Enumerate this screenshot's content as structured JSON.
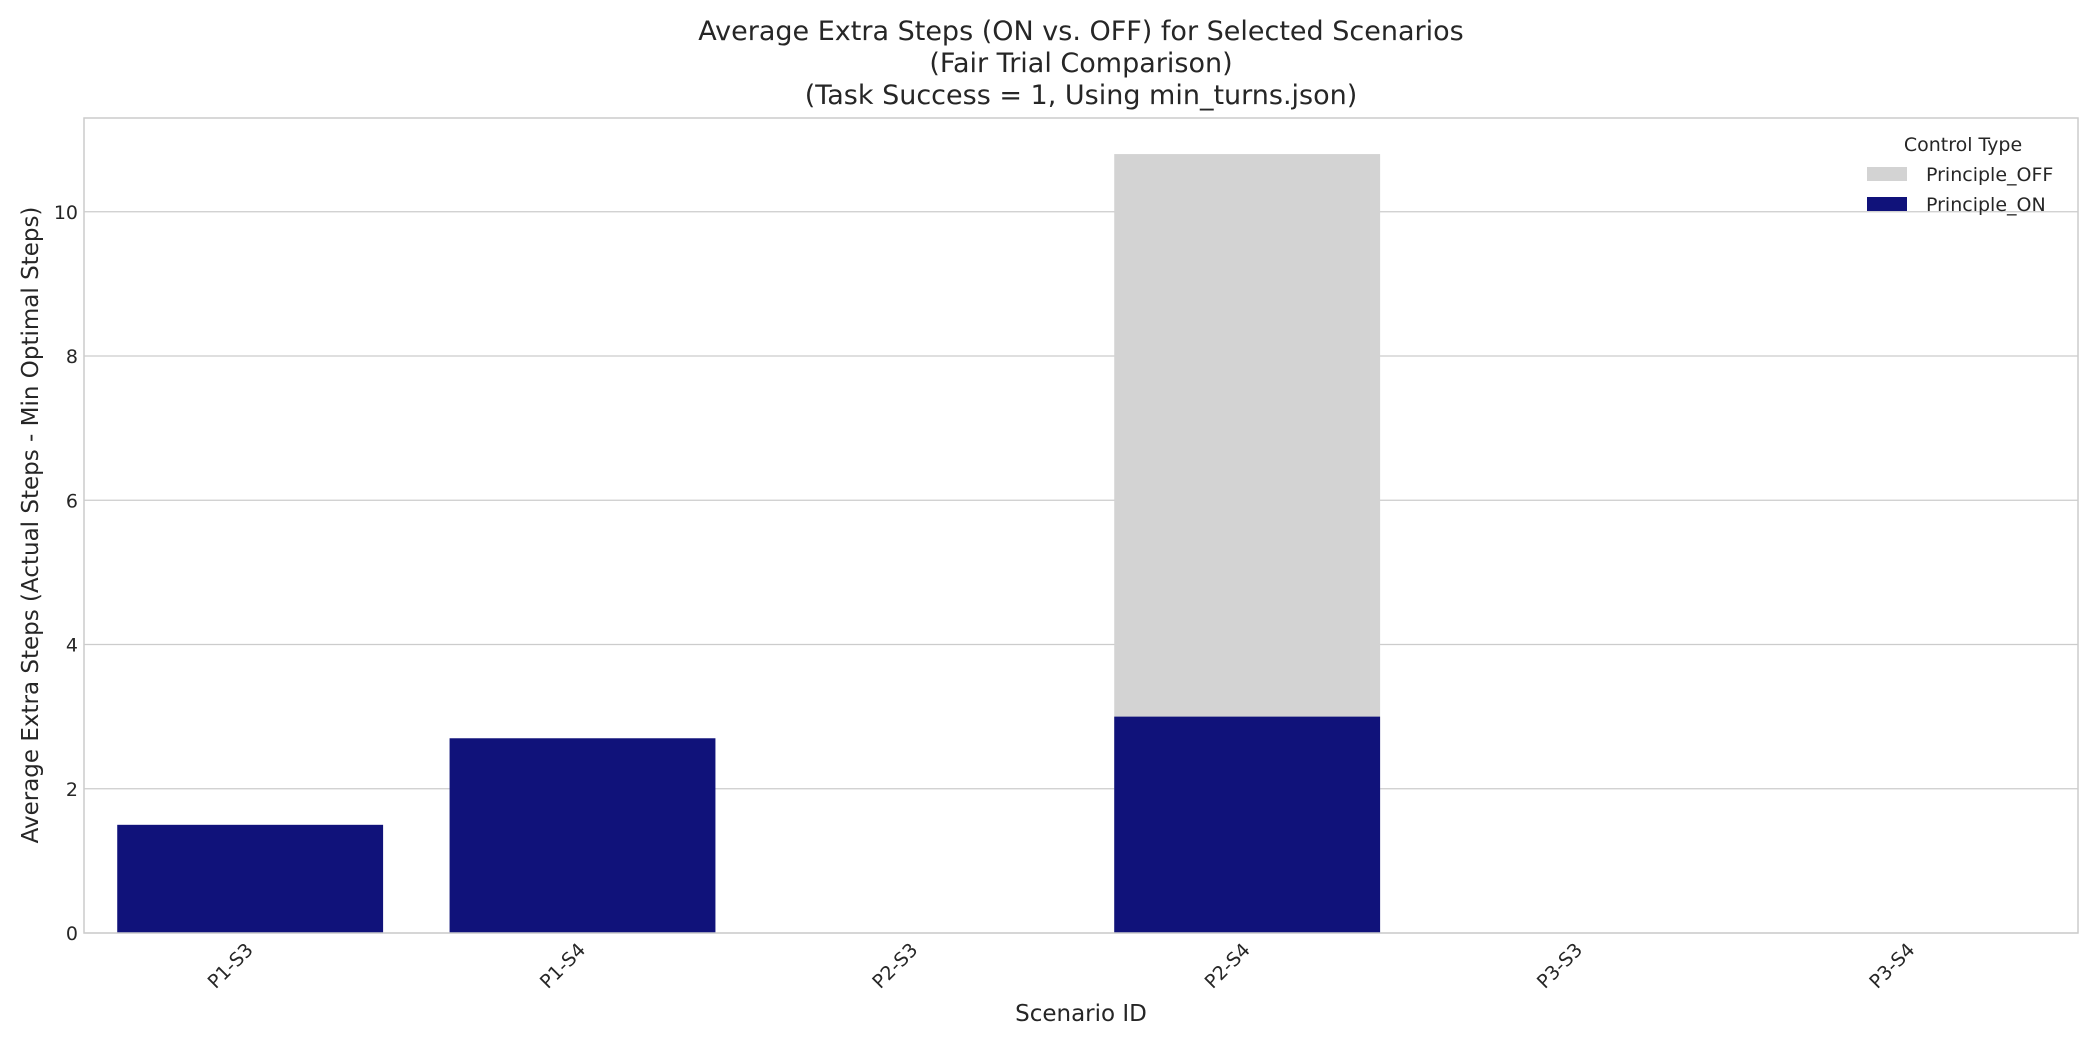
{
  "chart_data": {
    "type": "bar",
    "title_lines": [
      "Average Extra Steps (ON vs. OFF) for Selected Scenarios",
      "(Fair Trial Comparison)",
      "(Task Success = 1, Using min_turns.json)"
    ],
    "xlabel": "Scenario ID",
    "ylabel": "Average Extra Steps (Actual Steps - Min Optimal Steps)",
    "categories": [
      "P1-S3",
      "P1-S4",
      "P2-S3",
      "P2-S4",
      "P3-S3",
      "P3-S4"
    ],
    "series": [
      {
        "name": "Principle_OFF",
        "color": "#d3d3d3",
        "values": [
          0,
          0,
          0,
          10.8,
          0,
          0
        ]
      },
      {
        "name": "Principle_ON",
        "color": "#10127a",
        "values": [
          1.5,
          2.7,
          0,
          3.0,
          0,
          0
        ]
      }
    ],
    "ylim": [
      0,
      11.3
    ],
    "yticks": [
      0,
      2,
      4,
      6,
      8,
      10
    ],
    "grid": "horizontal",
    "legend": {
      "title": "Control Type",
      "placement": "top-right"
    }
  }
}
